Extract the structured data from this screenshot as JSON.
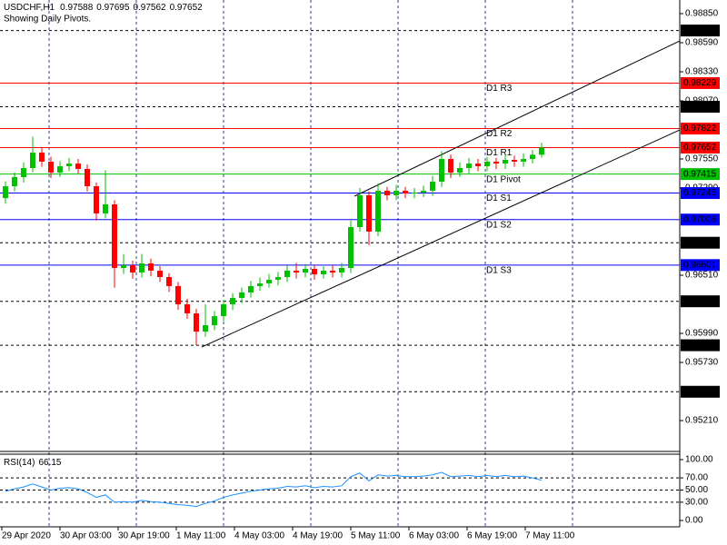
{
  "chart_data": {
    "type": "candlestick",
    "symbol": "USDCHF,H1",
    "subtitle": "Showing Daily Pivots.",
    "xlim": [
      -0.6,
      74.2
    ],
    "ylim": [
      0.94934,
      0.98972
    ],
    "yticks": [
      {
        "value": 0.9885,
        "label": "0.98850"
      },
      {
        "value": 0.9859,
        "label": "0.98590"
      },
      {
        "value": 0.9833,
        "label": "0.98330"
      },
      {
        "value": 0.9807,
        "label": "0.98070"
      },
      {
        "value": 0.9755,
        "label": "0.97550"
      },
      {
        "value": 0.9729,
        "label": "0.97290"
      },
      {
        "value": 0.9651,
        "label": "0.96510"
      },
      {
        "value": 0.9599,
        "label": "0.95990"
      },
      {
        "value": 0.9573,
        "label": "0.95730"
      },
      {
        "value": 0.9521,
        "label": "0.95210"
      }
    ],
    "xticks": [
      {
        "value": -0.4,
        "label": "29 Apr 2020"
      },
      {
        "value": 6,
        "label": "30 Apr 03:00"
      },
      {
        "value": 12.4,
        "label": "30 Apr 19:00"
      },
      {
        "value": 18.8,
        "label": "1 May 11:00"
      },
      {
        "value": 25.2,
        "label": "4 May 03:00"
      },
      {
        "value": 31.6,
        "label": "4 May 19:00"
      },
      {
        "value": 38,
        "label": "5 May 11:00"
      },
      {
        "value": 44.4,
        "label": "6 May 03:00"
      },
      {
        "value": 50.8,
        "label": "6 May 19:00"
      },
      {
        "value": 57.2,
        "label": "7 May 11:00"
      }
    ],
    "xgrid": [
      4.8,
      14.4,
      24,
      33.6,
      43.2,
      52.8,
      62.4
    ],
    "up_color": "#00c000",
    "down_color": "#ff0000",
    "open": [
      0.972,
      0.97306,
      0.97388,
      0.97469,
      0.97607,
      0.97526,
      0.97428,
      0.97485,
      0.97509,
      0.97461,
      0.97306,
      0.97063,
      0.97144,
      0.96575,
      0.96599,
      0.96534,
      0.96616,
      0.96551,
      0.96494,
      0.96413,
      0.9625,
      0.96169,
      0.96006,
      0.96063,
      0.96144,
      0.9625,
      0.96307,
      0.96356,
      0.96413,
      0.96437,
      0.96469,
      0.96494,
      0.96551,
      0.96534,
      0.96567,
      0.96518,
      0.96551,
      0.96534,
      0.96575,
      0.96941,
      0.97225,
      0.969,
      0.97266,
      0.97225,
      0.97266,
      0.97241,
      0.9725,
      0.97266,
      0.97347,
      0.9755,
      0.97428,
      0.97469,
      0.97509,
      0.97485,
      0.97526,
      0.97509,
      0.97542,
      0.97526,
      0.9755,
      0.97588
    ],
    "high": [
      0.9735,
      0.9743,
      0.9752,
      0.9775,
      0.9765,
      0.9757,
      0.9753,
      0.9756,
      0.9755,
      0.975,
      0.9734,
      0.9745,
      0.9718,
      0.967,
      0.9664,
      0.967,
      0.9666,
      0.9659,
      0.9653,
      0.9645,
      0.963,
      0.9621,
      0.9625,
      0.9619,
      0.9629,
      0.9635,
      0.964,
      0.9646,
      0.9649,
      0.9652,
      0.9654,
      0.966,
      0.9662,
      0.9661,
      0.966,
      0.9659,
      0.966,
      0.9662,
      0.97,
      0.9729,
      0.9726,
      0.9733,
      0.973,
      0.9732,
      0.973,
      0.9729,
      0.9731,
      0.974,
      0.9762,
      0.9759,
      0.9752,
      0.9756,
      0.9755,
      0.9757,
      0.9756,
      0.9759,
      0.9758,
      0.976,
      0.9763,
      0.97695
    ],
    "low": [
      0.9715,
      0.9726,
      0.9734,
      0.9743,
      0.9748,
      0.9738,
      0.9739,
      0.9744,
      0.9742,
      0.9726,
      0.97,
      0.9702,
      0.964,
      0.9652,
      0.9648,
      0.9649,
      0.965,
      0.9645,
      0.9636,
      0.962,
      0.9612,
      0.95884,
      0.9596,
      0.9602,
      0.961,
      0.962,
      0.9626,
      0.9631,
      0.9637,
      0.964,
      0.9642,
      0.9645,
      0.9648,
      0.9649,
      0.9647,
      0.9648,
      0.9649,
      0.9649,
      0.9653,
      0.969,
      0.96778,
      0.9686,
      0.9718,
      0.9718,
      0.972,
      0.972,
      0.9721,
      0.9722,
      0.973,
      0.9738,
      0.9739,
      0.9742,
      0.9744,
      0.9744,
      0.9746,
      0.9746,
      0.9748,
      0.9748,
      0.9751,
      0.97562
    ],
    "close": [
      0.97306,
      0.97388,
      0.97469,
      0.97607,
      0.97526,
      0.97428,
      0.97485,
      0.97509,
      0.97461,
      0.97306,
      0.97063,
      0.97144,
      0.96575,
      0.96599,
      0.96534,
      0.96616,
      0.96551,
      0.96494,
      0.96413,
      0.9625,
      0.96169,
      0.96006,
      0.96063,
      0.96144,
      0.9625,
      0.96307,
      0.96356,
      0.96413,
      0.96437,
      0.96469,
      0.96494,
      0.96551,
      0.96534,
      0.96567,
      0.96518,
      0.96551,
      0.96534,
      0.96575,
      0.96941,
      0.97225,
      0.969,
      0.97266,
      0.97225,
      0.97266,
      0.97241,
      0.9725,
      0.97266,
      0.97347,
      0.9755,
      0.97428,
      0.97469,
      0.97509,
      0.97485,
      0.97526,
      0.97509,
      0.97542,
      0.97526,
      0.9755,
      0.97588,
      0.97652
    ],
    "levels": [
      {
        "name": "D1 R3",
        "value": 0.98229,
        "color": "#ff0000"
      },
      {
        "name": "D1 R2",
        "value": 0.97822,
        "color": "#ff0000"
      },
      {
        "name": "D1 R1",
        "value": 0.97652,
        "color": "#ff0000"
      },
      {
        "name": "D1 Pivot",
        "value": 0.97415,
        "color": "#00c000"
      },
      {
        "name": "D1 S1",
        "value": 0.97245,
        "color": "#0000ff"
      },
      {
        "name": "D1 S2",
        "value": 0.97008,
        "color": "#0000ff"
      },
      {
        "name": "D1 S3",
        "value": 0.96601,
        "color": "#0000ff"
      }
    ],
    "hlines": [
      0.98699,
      0.98017,
      0.96801,
      0.96277,
      0.95884,
      0.95468
    ],
    "trendlines": [
      {
        "x": [
          21.6,
          74.2
        ],
        "y": [
          0.95868,
          0.9781
        ]
      },
      {
        "x": [
          38.4,
          74.2
        ],
        "y": [
          0.97217,
          0.98606
        ]
      }
    ],
    "rsi": {
      "name": "RSI(14)",
      "color": "#1e90ff",
      "values": [
        48,
        52,
        55,
        60,
        55,
        50,
        53,
        54,
        52,
        46,
        38,
        42,
        30,
        31,
        30,
        33,
        31,
        30,
        28,
        26,
        25,
        23,
        28,
        32,
        38,
        42,
        45,
        48,
        50,
        52,
        53,
        56,
        55,
        57,
        54,
        56,
        55,
        57,
        72,
        78,
        65,
        75,
        73,
        74,
        72,
        72,
        73,
        75,
        79,
        72,
        73,
        74,
        72,
        74,
        72,
        74,
        72,
        73,
        70,
        66.15
      ],
      "ylim": [
        -10.45,
        108.96
      ],
      "yticks": [
        {
          "value": 100,
          "label": "100.00"
        },
        {
          "value": 70,
          "label": "70.00"
        },
        {
          "value": 50,
          "label": "50.00"
        },
        {
          "value": 30,
          "label": "30.00"
        },
        {
          "value": 0,
          "label": "0.00"
        }
      ],
      "levels": [
        70,
        50,
        30
      ]
    }
  }
}
